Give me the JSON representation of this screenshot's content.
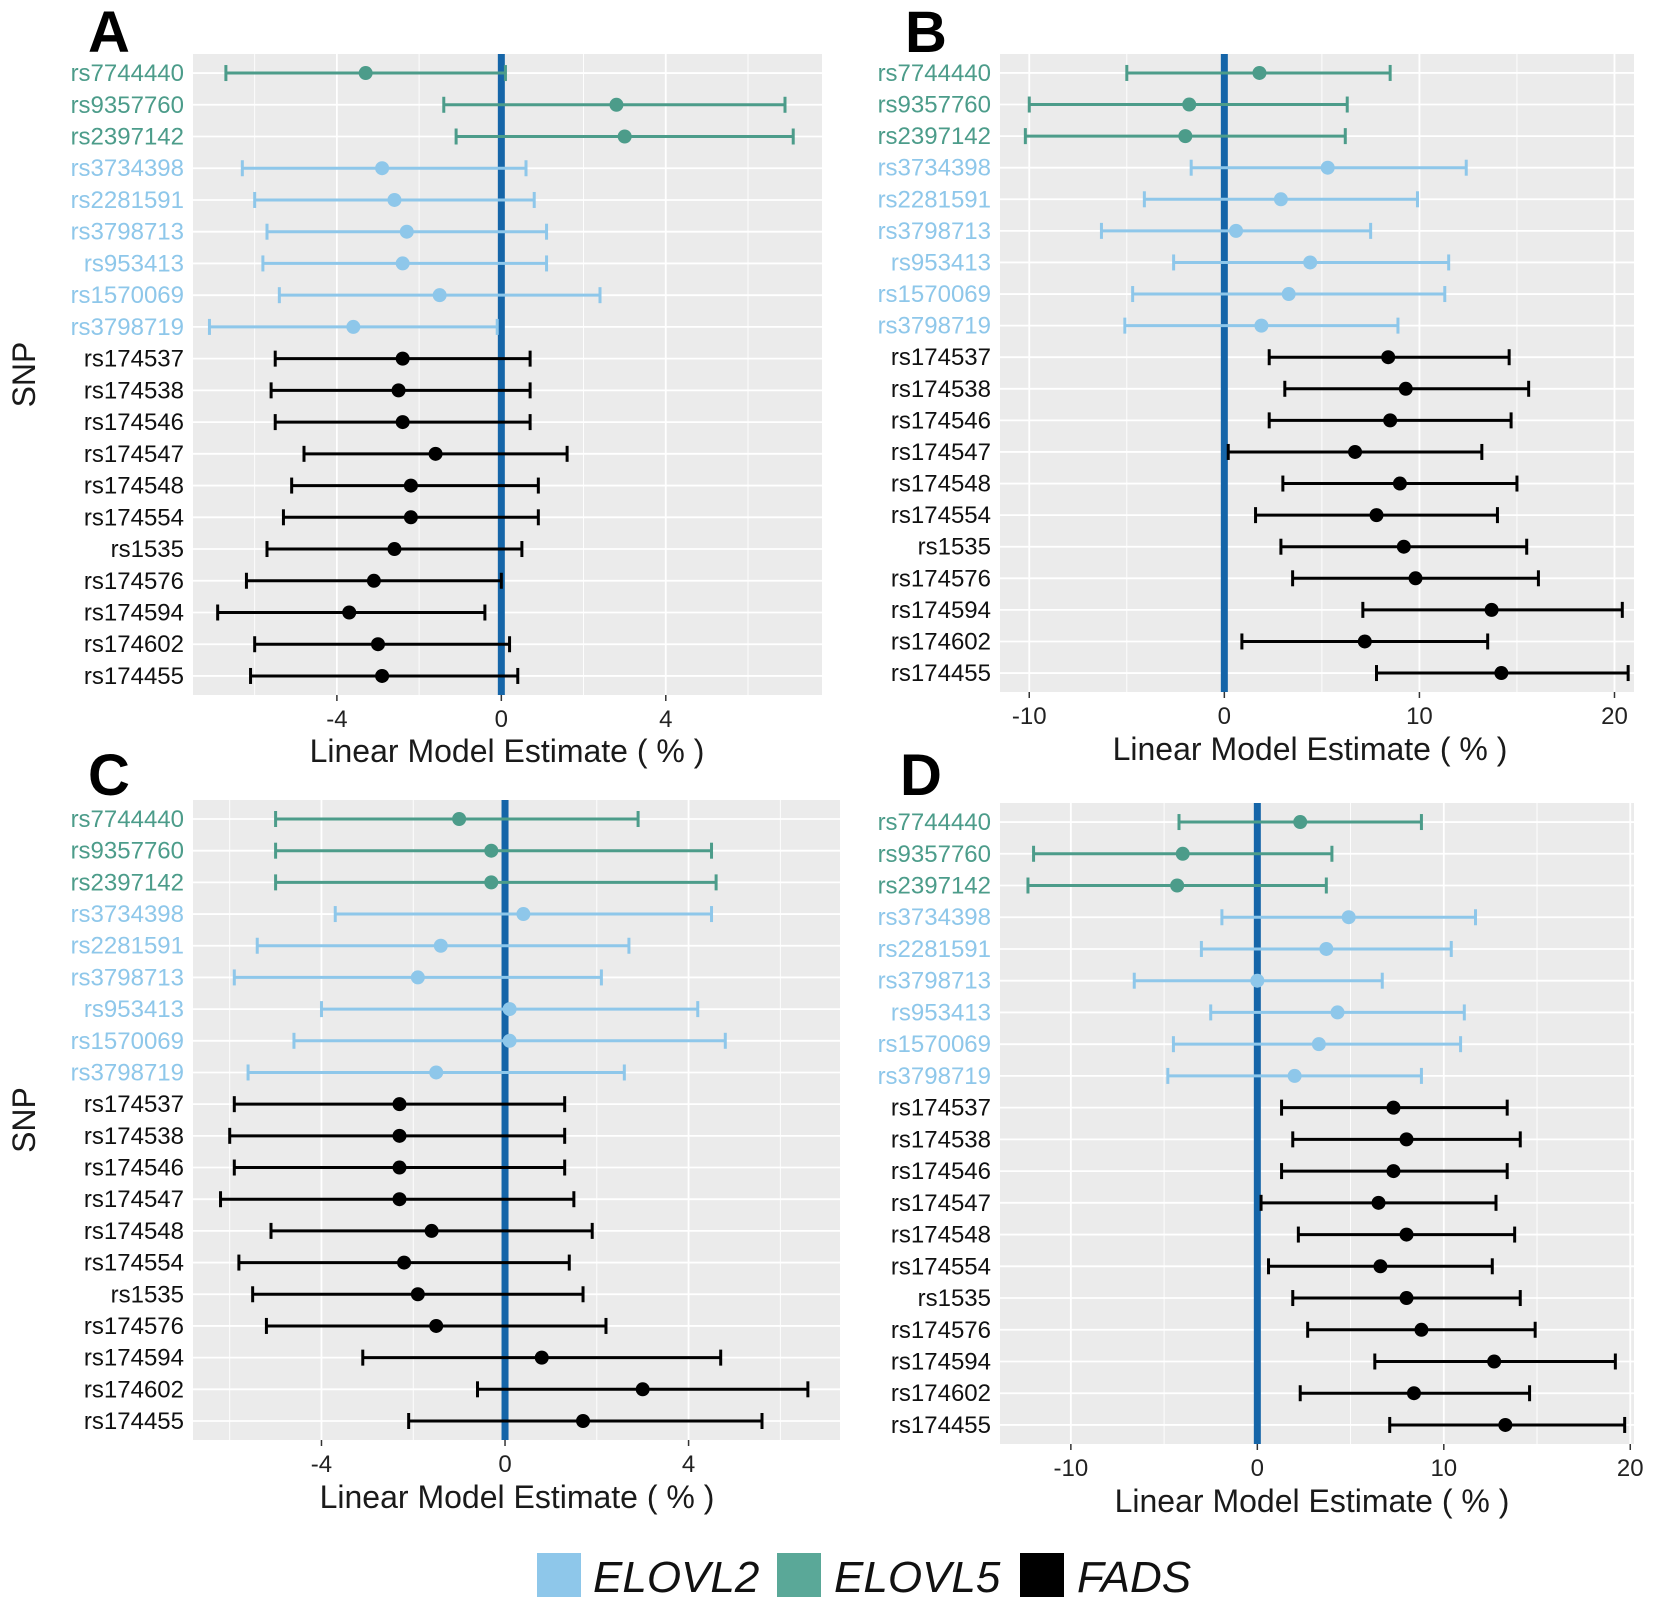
{
  "colors": {
    "ELOVL2": "#8ec7ea",
    "ELOVL5": "#4c9c8a",
    "FADS": "#000000",
    "zero_line": "#1565a8",
    "panel_bg": "#ebebeb",
    "grid": "#ffffff"
  },
  "legend": {
    "items": [
      {
        "name": "ELOVL2",
        "color": "#8ec7ea"
      },
      {
        "name": "ELOVL5",
        "color": "#5aa898"
      },
      {
        "name": "FADS",
        "color": "#000000"
      }
    ]
  },
  "snps": [
    {
      "id": "rs7744440",
      "gene": "ELOVL5"
    },
    {
      "id": "rs9357760",
      "gene": "ELOVL5"
    },
    {
      "id": "rs2397142",
      "gene": "ELOVL5"
    },
    {
      "id": "rs3734398",
      "gene": "ELOVL2"
    },
    {
      "id": "rs2281591",
      "gene": "ELOVL2"
    },
    {
      "id": "rs3798713",
      "gene": "ELOVL2"
    },
    {
      "id": "rs953413",
      "gene": "ELOVL2"
    },
    {
      "id": "rs1570069",
      "gene": "ELOVL2"
    },
    {
      "id": "rs3798719",
      "gene": "ELOVL2"
    },
    {
      "id": "rs174537",
      "gene": "FADS"
    },
    {
      "id": "rs174538",
      "gene": "FADS"
    },
    {
      "id": "rs174546",
      "gene": "FADS"
    },
    {
      "id": "rs174547",
      "gene": "FADS"
    },
    {
      "id": "rs174548",
      "gene": "FADS"
    },
    {
      "id": "rs174554",
      "gene": "FADS"
    },
    {
      "id": "rs1535",
      "gene": "FADS"
    },
    {
      "id": "rs174576",
      "gene": "FADS"
    },
    {
      "id": "rs174594",
      "gene": "FADS"
    },
    {
      "id": "rs174602",
      "gene": "FADS"
    },
    {
      "id": "rs174455",
      "gene": "FADS"
    }
  ],
  "chart_data": [
    {
      "panel": "A",
      "type": "forest",
      "xlabel": "Linear Model Estimate ( % )",
      "ylabel": "SNP",
      "xlim": [
        -7.5,
        7.8
      ],
      "xticks": [
        -4,
        0,
        4
      ],
      "estimates": [
        -3.3,
        2.8,
        3.0,
        -2.9,
        -2.6,
        -2.3,
        -2.4,
        -1.5,
        -3.6,
        -2.4,
        -2.5,
        -2.4,
        -1.6,
        -2.2,
        -2.2,
        -2.6,
        -3.1,
        -3.7,
        -3.0,
        -2.9
      ],
      "lower": [
        -6.7,
        -1.4,
        -1.1,
        -6.3,
        -6.0,
        -5.7,
        -5.8,
        -5.4,
        -7.1,
        -5.5,
        -5.6,
        -5.5,
        -4.8,
        -5.1,
        -5.3,
        -5.7,
        -6.2,
        -6.9,
        -6.0,
        -6.1
      ],
      "upper": [
        0.1,
        6.9,
        7.1,
        0.6,
        0.8,
        1.1,
        1.1,
        2.4,
        -0.1,
        0.7,
        0.7,
        0.7,
        1.6,
        0.9,
        0.9,
        0.5,
        0.0,
        -0.4,
        0.2,
        0.4
      ]
    },
    {
      "panel": "B",
      "type": "forest",
      "xlabel": "Linear Model Estimate ( % )",
      "ylabel": "",
      "xlim": [
        -11.5,
        21
      ],
      "xticks": [
        -10,
        0,
        10,
        20
      ],
      "estimates": [
        1.8,
        -1.8,
        -2.0,
        5.3,
        2.9,
        0.6,
        4.4,
        3.3,
        1.9,
        8.4,
        9.3,
        8.5,
        6.7,
        9.0,
        7.8,
        9.2,
        9.8,
        13.7,
        7.2,
        14.2
      ],
      "lower": [
        -5.0,
        -10.0,
        -10.2,
        -1.7,
        -4.1,
        -6.3,
        -2.6,
        -4.7,
        -5.1,
        2.3,
        3.1,
        2.3,
        0.2,
        3.0,
        1.6,
        2.9,
        3.5,
        7.1,
        0.9,
        7.8
      ],
      "upper": [
        8.5,
        6.3,
        6.2,
        12.4,
        9.9,
        7.5,
        11.5,
        11.3,
        8.9,
        14.6,
        15.6,
        14.7,
        13.2,
        15.0,
        14.0,
        15.5,
        16.1,
        20.4,
        13.5,
        20.7
      ]
    },
    {
      "panel": "C",
      "type": "forest",
      "xlabel": "Linear Model Estimate ( % )",
      "ylabel": "SNP",
      "xlim": [
        -6.8,
        7.3
      ],
      "xticks": [
        -4,
        0,
        4
      ],
      "estimates": [
        -1.0,
        -0.3,
        -0.3,
        0.4,
        -1.4,
        -1.9,
        0.1,
        0.1,
        -1.5,
        -2.3,
        -2.3,
        -2.3,
        -2.3,
        -1.6,
        -2.2,
        -1.9,
        -1.5,
        0.8,
        3.0,
        1.7
      ],
      "lower": [
        -5.0,
        -5.0,
        -5.0,
        -3.7,
        -5.4,
        -5.9,
        -4.0,
        -4.6,
        -5.6,
        -5.9,
        -6.0,
        -5.9,
        -6.2,
        -5.1,
        -5.8,
        -5.5,
        -5.2,
        -3.1,
        -0.6,
        -2.1
      ],
      "upper": [
        2.9,
        4.5,
        4.6,
        4.5,
        2.7,
        2.1,
        4.2,
        4.8,
        2.6,
        1.3,
        1.3,
        1.3,
        1.5,
        1.9,
        1.4,
        1.7,
        2.2,
        4.7,
        6.6,
        5.6
      ]
    },
    {
      "panel": "D",
      "type": "forest",
      "xlabel": "Linear Model Estimate ( % )",
      "ylabel": "",
      "xlim": [
        -13.8,
        20.2
      ],
      "xticks": [
        -10,
        0,
        10,
        20
      ],
      "estimates": [
        2.3,
        -4.0,
        -4.3,
        4.9,
        3.7,
        0.0,
        4.3,
        3.3,
        2.0,
        7.3,
        8.0,
        7.3,
        6.5,
        8.0,
        6.6,
        8.0,
        8.8,
        12.7,
        8.4,
        13.3
      ],
      "lower": [
        -4.2,
        -12.0,
        -12.3,
        -1.9,
        -3.0,
        -6.6,
        -2.5,
        -4.5,
        -4.8,
        1.3,
        1.9,
        1.3,
        0.2,
        2.2,
        0.6,
        1.9,
        2.7,
        6.3,
        2.3,
        7.1
      ],
      "upper": [
        8.8,
        4.0,
        3.7,
        11.7,
        10.4,
        6.7,
        11.1,
        10.9,
        8.8,
        13.4,
        14.1,
        13.4,
        12.8,
        13.8,
        12.6,
        14.1,
        14.9,
        19.2,
        14.6,
        19.7
      ]
    }
  ]
}
